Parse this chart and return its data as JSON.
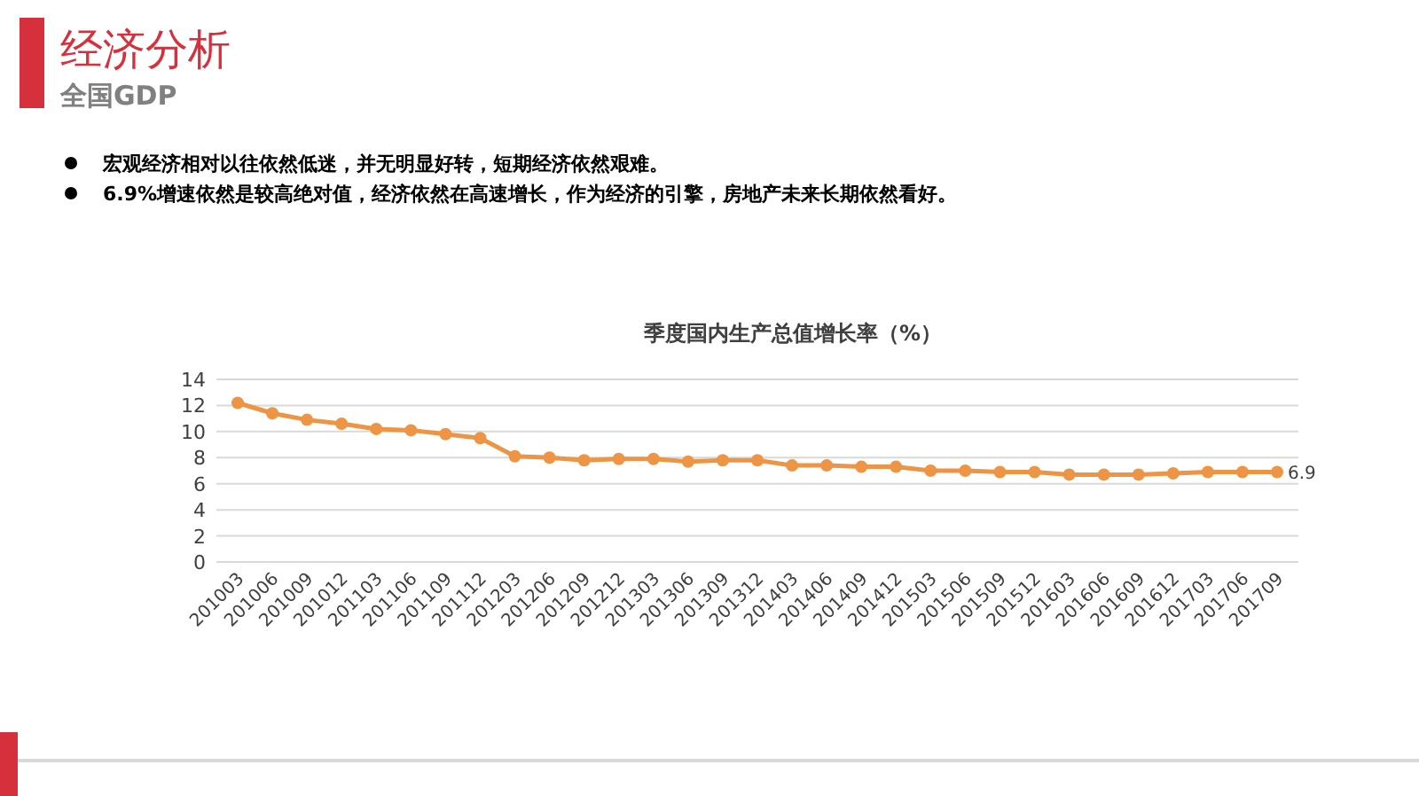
{
  "chart_data": {
    "type": "line",
    "title": "经济分析",
    "subtitle": "全国GDP",
    "annotations": [
      "宏观经济相对以往依然低迷，并无明显好转，短期经济依然艰难。",
      "6.9%增速依然是较高绝对值，经济依然在高速增长，作为经济的引擎，房地产未来长期依然看好。",
      "季度国内生产总值增长率（%）"
    ],
    "categories": [
      "201003",
      "201006",
      "201009",
      "201012",
      "201103",
      "201106",
      "201109",
      "201112",
      "201203",
      "201206",
      "201209",
      "201212",
      "201303",
      "201306",
      "201309",
      "201312",
      "201403",
      "201406",
      "201409",
      "201412",
      "201503",
      "201506",
      "201509",
      "201512",
      "201603",
      "201606",
      "201609",
      "201612",
      "201703",
      "201706",
      "201709"
    ],
    "series": [
      {
        "color": "#ed9445",
        "values": [
          12.2,
          11.4,
          10.9,
          10.6,
          10.2,
          10.1,
          9.8,
          9.5,
          8.1,
          8.0,
          7.8,
          7.9,
          7.9,
          7.7,
          7.8,
          7.8,
          7.4,
          7.4,
          7.3,
          7.3,
          7.0,
          7.0,
          6.9,
          6.9,
          6.7,
          6.7,
          6.7,
          6.8,
          6.9,
          6.9,
          6.9
        ],
        "value_labels": [
          null,
          null,
          null,
          null,
          null,
          null,
          null,
          null,
          null,
          null,
          null,
          null,
          null,
          null,
          null,
          null,
          null,
          null,
          null,
          null,
          null,
          null,
          null,
          null,
          null,
          null,
          null,
          null,
          null,
          null,
          "6.9"
        ]
      }
    ],
    "ylim": [
      0,
      14
    ],
    "yticks": [
      0,
      2,
      4,
      6,
      8,
      10,
      12,
      14
    ],
    "grid": "y",
    "marker": "circle",
    "line_style": "solid"
  }
}
